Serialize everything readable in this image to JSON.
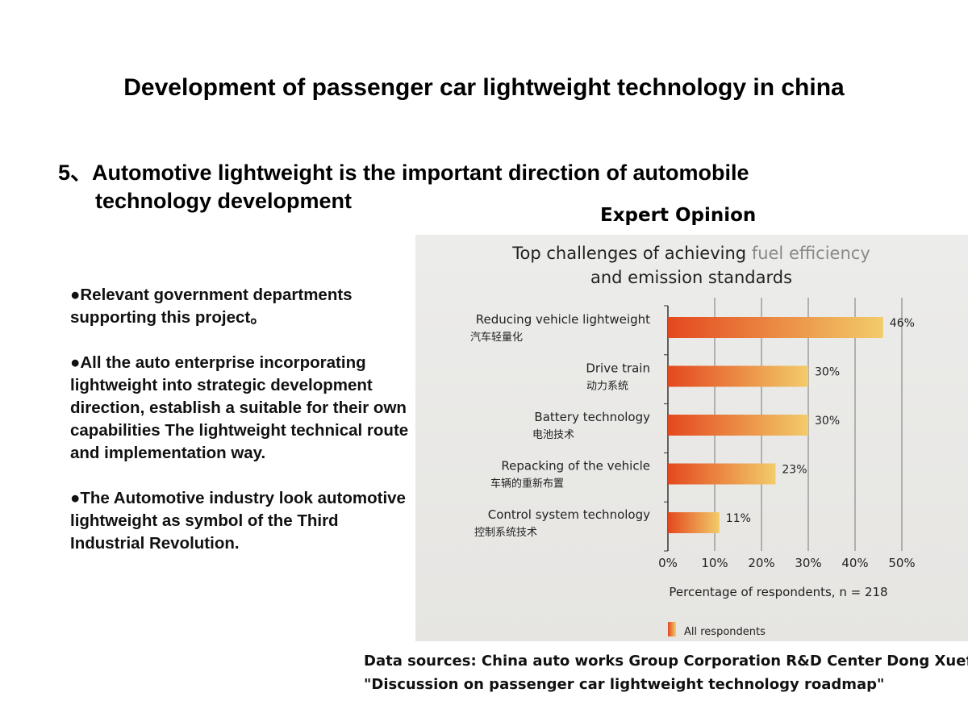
{
  "slide": {
    "title": "Development of passenger car lightweight technology in china",
    "point_line1": "5、Automotive lightweight is the important direction of automobile",
    "point_line2": "technology development",
    "expert_label": "Expert Opinion",
    "bullets": [
      "●Relevant government departments supporting this project。",
      "●All the auto enterprise incorporating lightweight into strategic development direction, establish a suitable for their own capabilities The lightweight technical route and implementation way.",
      "●The Automotive industry look automotive lightweight as symbol of the Third Industrial Revolution."
    ],
    "source_line1": "Data sources: China auto works Group Corporation R&D Center Dong Xuefeng",
    "source_line2": "\"Discussion on passenger car lightweight technology roadmap\""
  },
  "chart_data": {
    "type": "bar",
    "orientation": "horizontal",
    "title_line1_a": "Top challenges of achieving ",
    "title_line1_b": "fuel efficiency",
    "title_line2": "and emission standards",
    "categories": [
      "Reducing vehicle lightweight",
      "Drive train",
      "Battery technology",
      "Repacking of the vehicle",
      "Control system technology"
    ],
    "categories_zh": [
      "汽车轻量化",
      "动力系统",
      "电池技术",
      "车辆的重新布置",
      "控制系统技术"
    ],
    "values": [
      46,
      30,
      30,
      23,
      11
    ],
    "data_labels": [
      "46%",
      "30%",
      "30%",
      "23%",
      "11%"
    ],
    "xticks": [
      "0%",
      "10%",
      "20%",
      "30%",
      "40%",
      "50%"
    ],
    "xlim": [
      0,
      50
    ],
    "xlabel": "Percentage of respondents, n = 218",
    "legend": "All respondents",
    "legend_position": "bottom",
    "grid": true,
    "colors": {
      "bar_start": "#e4481e",
      "bar_end": "#f2cc6a",
      "title_accent": "#8a8a88"
    }
  }
}
